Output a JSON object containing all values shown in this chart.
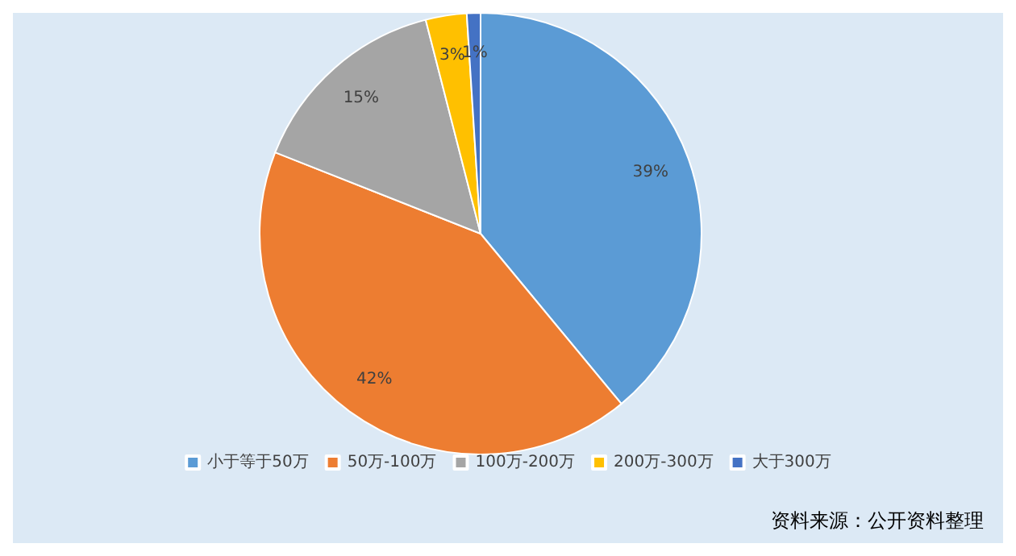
{
  "chart_data": {
    "type": "pie",
    "categories": [
      "小于等于50万",
      "50万-100万",
      "100万-200万",
      "200万-300万",
      "大于300万"
    ],
    "values": [
      39,
      42,
      15,
      3,
      1
    ],
    "colors": [
      "#5b9bd5",
      "#ed7d31",
      "#a5a5a5",
      "#ffc000",
      "#4472c4"
    ],
    "value_labels": [
      "39%",
      "42%",
      "15%",
      "3%",
      "1%"
    ],
    "legend": "bottom",
    "annotations": [
      "资料来源：公开资料整理"
    ]
  }
}
